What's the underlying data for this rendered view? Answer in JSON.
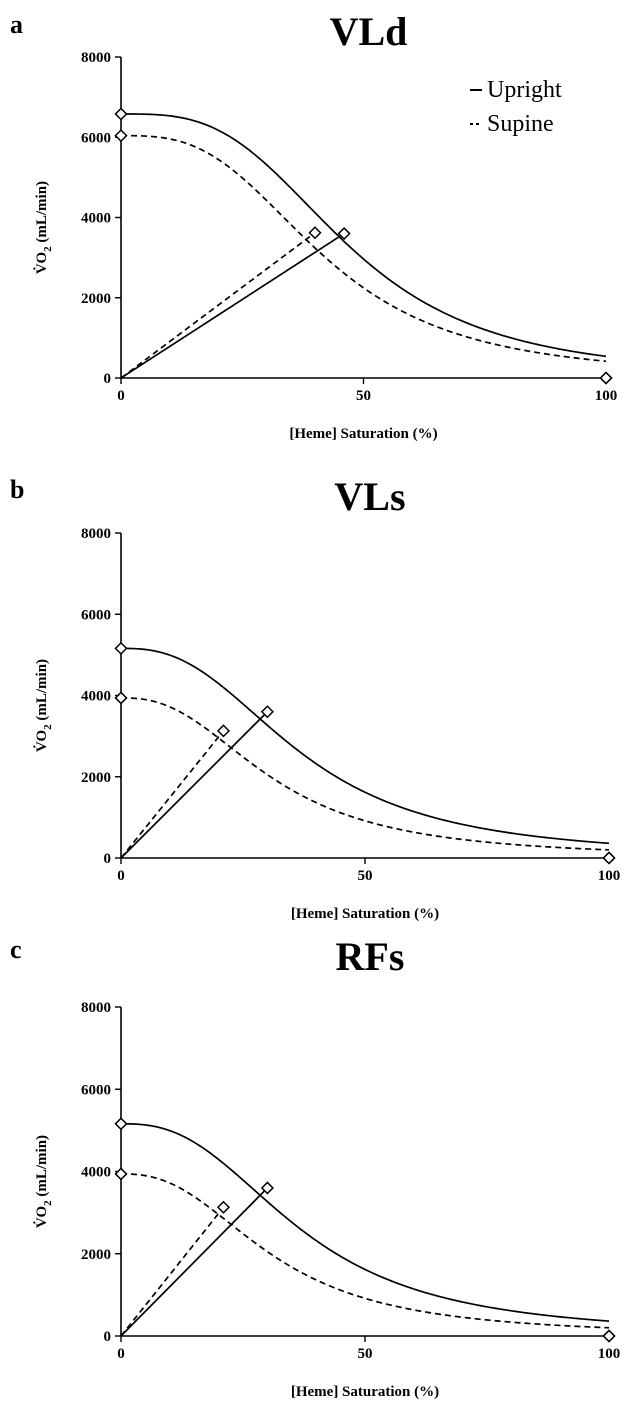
{
  "chart_data": [
    {
      "type": "line",
      "panel": "a",
      "title": "VLd",
      "xlabel": "[Heme] Saturation (%)",
      "ylabel_parts": [
        "V̇",
        "O",
        "2",
        " (mL/min)"
      ],
      "xlim": [
        0,
        100
      ],
      "ylim": [
        0,
        8000
      ],
      "xticks": [
        "0",
        "50",
        "100"
      ],
      "yticks": [
        "0",
        "2000",
        "4000",
        "6000",
        "8000"
      ],
      "legend": [
        "Upright",
        "Supine"
      ],
      "legend_position": "top-right",
      "series": [
        {
          "name": "Upright",
          "style": "solid",
          "vmax": 6580,
          "p50": 47,
          "n": 3.2,
          "markers": [
            [
              0,
              6580
            ],
            [
              46,
              3600
            ],
            [
              100,
              0
            ]
          ],
          "diffusion_line": [
            [
              0,
              0
            ],
            [
              46,
              3600
            ]
          ]
        },
        {
          "name": "Supine",
          "style": "dashed",
          "vmax": 6040,
          "p50": 42,
          "n": 3.0,
          "markers": [
            [
              0,
              6040
            ],
            [
              40,
              3620
            ],
            [
              100,
              0
            ]
          ],
          "diffusion_line": [
            [
              0,
              0
            ],
            [
              40,
              3620
            ]
          ]
        }
      ]
    },
    {
      "type": "line",
      "panel": "b",
      "title": "VLs",
      "xlabel": "[Heme] Saturation (%)",
      "ylabel_parts": [
        "V̇",
        "O",
        "2",
        " (mL/min)"
      ],
      "xlim": [
        0,
        100
      ],
      "ylim": [
        0,
        8000
      ],
      "xticks": [
        "0",
        "50",
        "100"
      ],
      "yticks": [
        "0",
        "2000",
        "4000",
        "6000",
        "8000"
      ],
      "series": [
        {
          "name": "Upright",
          "style": "solid",
          "vmax": 5160,
          "p50": 37,
          "n": 2.6,
          "markers": [
            [
              0,
              5160
            ],
            [
              30,
              3600
            ],
            [
              100,
              0
            ]
          ],
          "diffusion_line": [
            [
              0,
              0
            ],
            [
              30,
              3600
            ]
          ]
        },
        {
          "name": "Supine",
          "style": "dashed",
          "vmax": 3940,
          "p50": 31,
          "n": 2.5,
          "markers": [
            [
              0,
              3940
            ],
            [
              21,
              3130
            ],
            [
              100,
              0
            ]
          ],
          "diffusion_line": [
            [
              0,
              0
            ],
            [
              21,
              3130
            ]
          ]
        }
      ]
    },
    {
      "type": "line",
      "panel": "c",
      "title": "RFs",
      "xlabel": "[Heme] Saturation (%)",
      "ylabel_parts": [
        "V̇",
        "O",
        "2",
        " (mL/min)"
      ],
      "xlim": [
        0,
        100
      ],
      "ylim": [
        0,
        8000
      ],
      "xticks": [
        "0",
        "50",
        "100"
      ],
      "yticks": [
        "0",
        "2000",
        "4000",
        "6000",
        "8000"
      ],
      "series": [
        {
          "name": "Upright",
          "style": "solid",
          "vmax": 5160,
          "p50": 37,
          "n": 2.6,
          "markers": [
            [
              0,
              5160
            ],
            [
              30,
              3600
            ],
            [
              100,
              0
            ]
          ],
          "diffusion_line": [
            [
              0,
              0
            ],
            [
              30,
              3600
            ]
          ]
        },
        {
          "name": "Supine",
          "style": "dashed",
          "vmax": 3940,
          "p50": 31,
          "n": 2.5,
          "markers": [
            [
              0,
              3940
            ],
            [
              21,
              3130
            ],
            [
              100,
              0
            ]
          ],
          "diffusion_line": [
            [
              0,
              0
            ],
            [
              21,
              3130
            ]
          ]
        }
      ]
    }
  ]
}
